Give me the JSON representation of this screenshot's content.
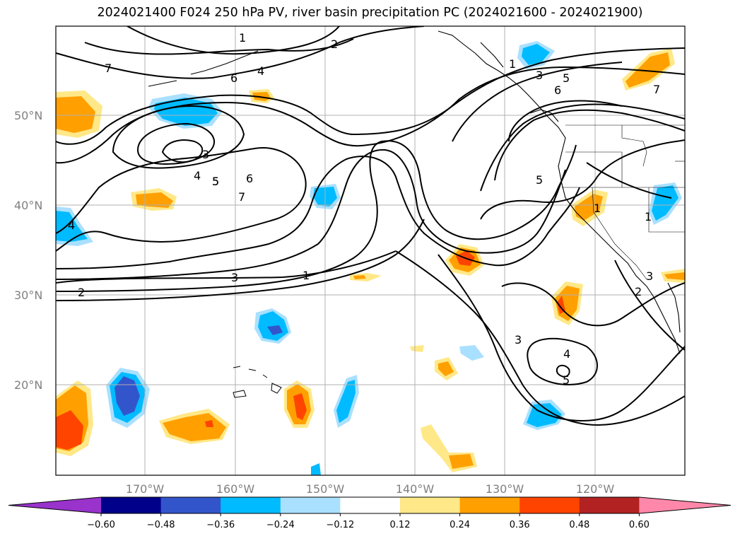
{
  "title": "2024021400 F024 250 hPa PV, river basin precipitation PC (2024021600 - 2024021900)",
  "lat_labels": [
    "50°N",
    "40°N",
    "30°N",
    "20°N"
  ],
  "lon_labels": [
    "170°W",
    "160°W",
    "150°W",
    "140°W",
    "130°W",
    "120°W"
  ],
  "colorbar": {
    "ticks": [
      "−0.60",
      "−0.48",
      "−0.36",
      "−0.24",
      "−0.12",
      "0.12",
      "0.24",
      "0.36",
      "0.48",
      "0.60"
    ],
    "colors": [
      "#9933cc",
      "#00008b",
      "#3355cc",
      "#00bbff",
      "#aae0ff",
      "#ffffff",
      "#ffe888",
      "#ffa000",
      "#ff4400",
      "#b22222",
      "#ff88aa"
    ]
  },
  "contour_labels": [
    "7",
    "6",
    "4",
    "1",
    "2",
    "3",
    "5",
    "4",
    "5",
    "6",
    "7",
    "3",
    "1",
    "2",
    "4",
    "3",
    "5",
    "4",
    "5",
    "6",
    "7",
    "1",
    "3",
    "2",
    "1",
    "1",
    "5",
    "3"
  ]
}
